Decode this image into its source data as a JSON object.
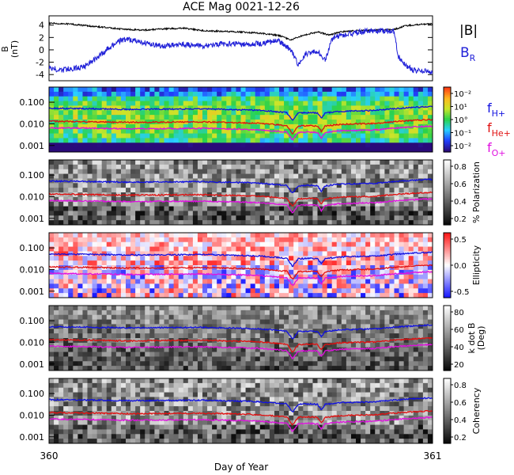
{
  "title": "ACE Mag 0021-12-26",
  "x_axis": {
    "label": "Day of Year",
    "start_label": "360",
    "end_label": "361"
  },
  "legend": {
    "B_total": {
      "label": "|B|",
      "color": "#000000"
    },
    "B_R": {
      "label": "B",
      "sub": "R",
      "color": "#2020d8"
    },
    "fH": {
      "label": "f",
      "sub": "H+",
      "color": "#1010e0"
    },
    "fHe": {
      "label": "f",
      "sub": "He+",
      "color": "#e01010"
    },
    "fO": {
      "label": "f",
      "sub": "O+",
      "color": "#e010e0"
    }
  },
  "chart_data": [
    {
      "type": "line",
      "panel": "magnetic-field",
      "ylabel": "B",
      "yunit": "(nT)",
      "yticks": [
        "4",
        "2",
        "0",
        "-2",
        "-4"
      ],
      "ylim": [
        -5,
        5.5
      ],
      "xlim": [
        360,
        361
      ],
      "series": [
        {
          "name": "|B|",
          "color": "#000000",
          "points": [
            [
              360.0,
              4.3
            ],
            [
              360.05,
              4.2
            ],
            [
              360.1,
              3.9
            ],
            [
              360.15,
              3.6
            ],
            [
              360.2,
              3.3
            ],
            [
              360.25,
              3.2
            ],
            [
              360.3,
              3.4
            ],
            [
              360.35,
              3.5
            ],
            [
              360.4,
              3.1
            ],
            [
              360.45,
              3.0
            ],
            [
              360.5,
              2.9
            ],
            [
              360.55,
              2.7
            ],
            [
              360.6,
              2.3
            ],
            [
              360.63,
              1.6
            ],
            [
              360.66,
              2.3
            ],
            [
              360.7,
              2.9
            ],
            [
              360.73,
              2.4
            ],
            [
              360.76,
              2.9
            ],
            [
              360.8,
              3.1
            ],
            [
              360.85,
              3.2
            ],
            [
              360.9,
              3.3
            ],
            [
              360.93,
              3.9
            ],
            [
              360.96,
              4.1
            ],
            [
              361.0,
              4.2
            ]
          ]
        },
        {
          "name": "B_R",
          "color": "#2020d8",
          "points": [
            [
              360.0,
              -2.8
            ],
            [
              360.03,
              -3.3
            ],
            [
              360.06,
              -3.0
            ],
            [
              360.09,
              -2.8
            ],
            [
              360.12,
              -1.5
            ],
            [
              360.15,
              0.0
            ],
            [
              360.18,
              1.3
            ],
            [
              360.2,
              1.8
            ],
            [
              360.25,
              1.1
            ],
            [
              360.3,
              0.6
            ],
            [
              360.35,
              0.9
            ],
            [
              360.4,
              0.6
            ],
            [
              360.45,
              1.0
            ],
            [
              360.5,
              0.9
            ],
            [
              360.55,
              1.0
            ],
            [
              360.6,
              1.5
            ],
            [
              360.63,
              0.0
            ],
            [
              360.65,
              -2.4
            ],
            [
              360.67,
              -0.6
            ],
            [
              360.7,
              -0.3
            ],
            [
              360.72,
              -1.6
            ],
            [
              360.74,
              2.0
            ],
            [
              360.78,
              2.5
            ],
            [
              360.82,
              3.0
            ],
            [
              360.86,
              3.1
            ],
            [
              360.9,
              3.0
            ],
            [
              360.91,
              -1.0
            ],
            [
              360.93,
              -2.5
            ],
            [
              360.95,
              -3.3
            ],
            [
              360.98,
              -3.4
            ],
            [
              361.0,
              -3.5
            ]
          ]
        }
      ]
    },
    {
      "type": "heatmap",
      "panel": "power-spectrum",
      "ylabel": "",
      "quantity": "wave power",
      "colorbar_ticks": [
        "10⁻²",
        "10¹",
        "10°",
        "10⁻¹",
        "10⁻²"
      ],
      "colormap": [
        "#2a0a7a",
        "#2040ff",
        "#2ad0ff",
        "#2ad24a",
        "#c8e62a",
        "#ffb81e",
        "#ff3c14"
      ],
      "yticks": [
        "0.100",
        "0.010",
        "0.001"
      ],
      "ylim": [
        0.0005,
        0.5
      ],
      "xlim": [
        360,
        361
      ]
    },
    {
      "type": "heatmap",
      "panel": "polarization",
      "ylabel": "% Polarization",
      "colorbar_ticks": [
        "0.8",
        "0.6",
        "0.4",
        "0.2"
      ],
      "colormap": [
        "#0a0a0a",
        "#ffffff"
      ],
      "yticks": [
        "0.100",
        "0.010",
        "0.001"
      ],
      "ylim": [
        0.0005,
        0.5
      ],
      "xlim": [
        360,
        361
      ]
    },
    {
      "type": "heatmap",
      "panel": "ellipticity",
      "ylabel": "Ellipticity",
      "colorbar_ticks": [
        "0.5",
        "0.0",
        "-0.5"
      ],
      "colormap": [
        "#1a1aff",
        "#ffffff",
        "#ff1a1a"
      ],
      "yticks": [
        "0.100",
        "0.010",
        "0.001"
      ],
      "ylim": [
        0.0005,
        0.5
      ],
      "xlim": [
        360,
        361
      ]
    },
    {
      "type": "heatmap",
      "panel": "wave-normal-angle",
      "ylabel": "k dot B",
      "yunit": "(Deg)",
      "colorbar_ticks": [
        "80",
        "60",
        "40",
        "20"
      ],
      "colormap": [
        "#0a0a0a",
        "#ffffff"
      ],
      "yticks": [
        "0.100",
        "0.010",
        "0.001"
      ],
      "ylim": [
        0.0005,
        0.5
      ],
      "xlim": [
        360,
        361
      ]
    },
    {
      "type": "heatmap",
      "panel": "coherency",
      "ylabel": "Coherency",
      "colorbar_ticks": [
        "0.8",
        "0.6",
        "0.4",
        "0.2"
      ],
      "colormap": [
        "#0a0a0a",
        "#ffffff"
      ],
      "yticks": [
        "0.100",
        "0.010",
        "0.001"
      ],
      "ylim": [
        0.0005,
        0.5
      ],
      "xlim": [
        360,
        361
      ]
    }
  ],
  "gyro_lines": {
    "fH_log10": [
      [
        360.0,
        -1.28
      ],
      [
        360.1,
        -1.3
      ],
      [
        360.2,
        -1.33
      ],
      [
        360.3,
        -1.32
      ],
      [
        360.4,
        -1.31
      ],
      [
        360.5,
        -1.35
      ],
      [
        360.55,
        -1.38
      ],
      [
        360.6,
        -1.45
      ],
      [
        360.62,
        -1.48
      ],
      [
        360.635,
        -1.85
      ],
      [
        360.65,
        -1.5
      ],
      [
        360.68,
        -1.48
      ],
      [
        360.7,
        -1.5
      ],
      [
        360.71,
        -1.75
      ],
      [
        360.72,
        -1.5
      ],
      [
        360.76,
        -1.42
      ],
      [
        360.8,
        -1.4
      ],
      [
        360.85,
        -1.38
      ],
      [
        360.9,
        -1.3
      ],
      [
        360.95,
        -1.24
      ],
      [
        361.0,
        -1.2
      ]
    ],
    "offset_He": -0.6,
    "offset_O": -0.9
  }
}
